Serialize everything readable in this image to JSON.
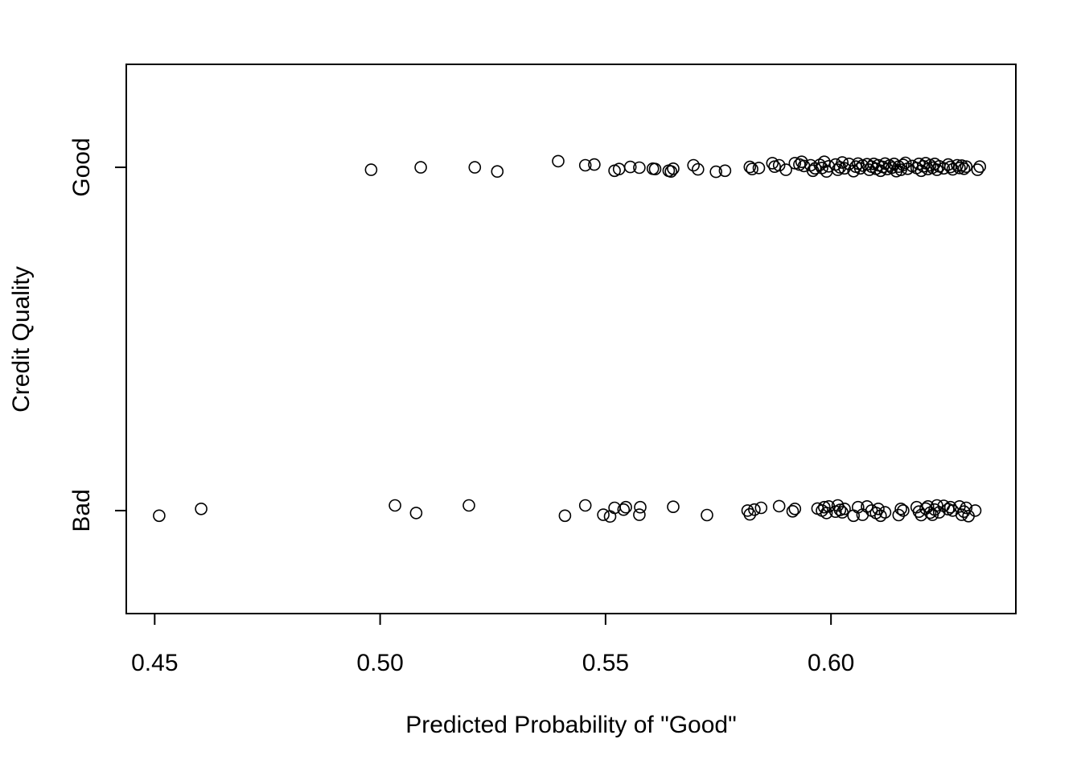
{
  "chart_data": {
    "type": "scatter",
    "title": "",
    "xlabel": "Predicted Probability of \"Good\"",
    "ylabel": "Credit Quality",
    "xlim": [
      0.4437,
      0.641
    ],
    "ylim": [
      0.7,
      2.3
    ],
    "x_ticks": [
      0.45,
      0.5,
      0.55,
      0.6
    ],
    "x_tick_labels": [
      "0.45",
      "0.50",
      "0.55",
      "0.60"
    ],
    "y_ticks": [
      1,
      2
    ],
    "y_tick_labels": [
      "Bad",
      "Good"
    ],
    "grid": false,
    "legend": "none",
    "marker": "open-circle",
    "marker_color": "#000000",
    "series": [
      {
        "category": "Good",
        "y": 2,
        "points": [
          [
            0.498,
            1.993
          ],
          [
            0.509,
            2.0
          ],
          [
            0.521,
            2.0
          ],
          [
            0.526,
            1.988
          ],
          [
            0.5395,
            2.018
          ],
          [
            0.5455,
            2.006
          ],
          [
            0.5475,
            2.008
          ],
          [
            0.552,
            1.99
          ],
          [
            0.553,
            1.995
          ],
          [
            0.5555,
            2.001
          ],
          [
            0.5575,
            1.999
          ],
          [
            0.5605,
            1.996
          ],
          [
            0.561,
            1.995
          ],
          [
            0.564,
            1.99
          ],
          [
            0.5645,
            1.988
          ],
          [
            0.565,
            1.996
          ],
          [
            0.5695,
            2.006
          ],
          [
            0.5705,
            1.994
          ],
          [
            0.5745,
            1.987
          ],
          [
            0.5765,
            1.99
          ],
          [
            0.582,
            2.001
          ],
          [
            0.5825,
            1.995
          ],
          [
            0.584,
            1.998
          ],
          [
            0.587,
            2.012
          ],
          [
            0.5875,
            2.002
          ],
          [
            0.5885,
            2.006
          ],
          [
            0.59,
            1.993
          ],
          [
            0.592,
            2.012
          ],
          [
            0.593,
            2.008
          ],
          [
            0.5935,
            2.016
          ],
          [
            0.594,
            2.004
          ],
          [
            0.5955,
            2.006
          ],
          [
            0.596,
            1.99
          ],
          [
            0.5965,
            1.997
          ],
          [
            0.5975,
            2.007
          ],
          [
            0.598,
            1.998
          ],
          [
            0.5985,
            2.016
          ],
          [
            0.599,
            1.988
          ],
          [
            0.5995,
            2.003
          ],
          [
            0.601,
            2.008
          ],
          [
            0.6015,
            1.993
          ],
          [
            0.602,
            2.0
          ],
          [
            0.6025,
            2.014
          ],
          [
            0.603,
            1.997
          ],
          [
            0.604,
            2.01
          ],
          [
            0.605,
            1.989
          ],
          [
            0.6055,
            2.002
          ],
          [
            0.606,
            2.011
          ],
          [
            0.6065,
            1.997
          ],
          [
            0.607,
            2.005
          ],
          [
            0.608,
            2.009
          ],
          [
            0.6085,
            1.993
          ],
          [
            0.609,
            2.002
          ],
          [
            0.6095,
            2.01
          ],
          [
            0.61,
            1.996
          ],
          [
            0.6105,
            2.006
          ],
          [
            0.611,
            1.99
          ],
          [
            0.6115,
            2.001
          ],
          [
            0.612,
            2.011
          ],
          [
            0.6125,
            1.995
          ],
          [
            0.613,
            2.005
          ],
          [
            0.6135,
            1.999
          ],
          [
            0.614,
            2.01
          ],
          [
            0.6145,
            1.989
          ],
          [
            0.615,
            2.002
          ],
          [
            0.6155,
            1.993
          ],
          [
            0.616,
            2.007
          ],
          [
            0.6165,
            2.013
          ],
          [
            0.617,
            1.996
          ],
          [
            0.618,
            2.004
          ],
          [
            0.619,
            1.998
          ],
          [
            0.6195,
            2.01
          ],
          [
            0.62,
            1.99
          ],
          [
            0.6205,
            2.003
          ],
          [
            0.621,
            2.012
          ],
          [
            0.6215,
            1.995
          ],
          [
            0.622,
            2.006
          ],
          [
            0.6225,
            1.999
          ],
          [
            0.623,
            2.01
          ],
          [
            0.6235,
            1.993
          ],
          [
            0.624,
            2.003
          ],
          [
            0.625,
            1.997
          ],
          [
            0.626,
            2.008
          ],
          [
            0.6265,
            2.001
          ],
          [
            0.627,
            1.994
          ],
          [
            0.628,
            2.006
          ],
          [
            0.6285,
            1.998
          ],
          [
            0.629,
            2.005
          ],
          [
            0.6295,
            1.996
          ],
          [
            0.63,
            2.002
          ],
          [
            0.6325,
            1.993
          ],
          [
            0.633,
            2.002
          ]
        ]
      },
      {
        "category": "Bad",
        "y": 1,
        "points": [
          [
            0.451,
            0.985
          ],
          [
            0.4603,
            1.005
          ],
          [
            0.5033,
            1.015
          ],
          [
            0.508,
            0.993
          ],
          [
            0.5197,
            1.015
          ],
          [
            0.541,
            0.985
          ],
          [
            0.5455,
            1.015
          ],
          [
            0.5495,
            0.988
          ],
          [
            0.551,
            0.983
          ],
          [
            0.552,
            1.008
          ],
          [
            0.554,
            1.003
          ],
          [
            0.5545,
            1.01
          ],
          [
            0.5575,
            0.988
          ],
          [
            0.5577,
            1.01
          ],
          [
            0.565,
            1.011
          ],
          [
            0.5725,
            0.987
          ],
          [
            0.5815,
            1.0
          ],
          [
            0.582,
            0.989
          ],
          [
            0.583,
            1.003
          ],
          [
            0.5845,
            1.008
          ],
          [
            0.5885,
            1.013
          ],
          [
            0.5915,
            0.998
          ],
          [
            0.592,
            1.005
          ],
          [
            0.597,
            1.006
          ],
          [
            0.598,
            1.0
          ],
          [
            0.5985,
            1.01
          ],
          [
            0.599,
            0.993
          ],
          [
            0.5995,
            1.012
          ],
          [
            0.601,
            0.997
          ],
          [
            0.6015,
            1.015
          ],
          [
            0.602,
            1.002
          ],
          [
            0.6025,
            0.995
          ],
          [
            0.603,
            1.005
          ],
          [
            0.605,
            0.985
          ],
          [
            0.606,
            1.01
          ],
          [
            0.607,
            0.988
          ],
          [
            0.608,
            1.012
          ],
          [
            0.609,
            1.0
          ],
          [
            0.61,
            0.993
          ],
          [
            0.6105,
            1.005
          ],
          [
            0.611,
            0.985
          ],
          [
            0.612,
            0.995
          ],
          [
            0.615,
            0.987
          ],
          [
            0.6155,
            1.005
          ],
          [
            0.616,
            1.0
          ],
          [
            0.619,
            1.01
          ],
          [
            0.6195,
            0.997
          ],
          [
            0.62,
            0.987
          ],
          [
            0.621,
            1.006
          ],
          [
            0.6215,
            1.012
          ],
          [
            0.622,
            0.994
          ],
          [
            0.6225,
            0.988
          ],
          [
            0.623,
            1.003
          ],
          [
            0.6235,
            1.015
          ],
          [
            0.624,
            0.995
          ],
          [
            0.625,
            1.014
          ],
          [
            0.626,
            1.004
          ],
          [
            0.6265,
            1.01
          ],
          [
            0.627,
            1.0
          ],
          [
            0.6285,
            1.012
          ],
          [
            0.629,
            0.988
          ],
          [
            0.6295,
            0.997
          ],
          [
            0.63,
            1.008
          ],
          [
            0.6305,
            0.984
          ],
          [
            0.632,
            1.0
          ]
        ]
      }
    ]
  }
}
